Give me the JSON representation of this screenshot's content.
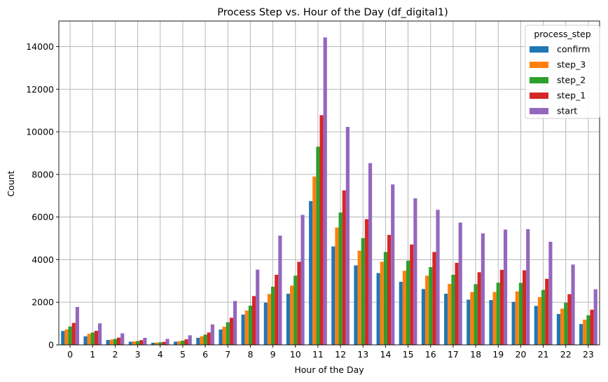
{
  "chart_data": {
    "type": "bar",
    "title": "Process Step vs. Hour of the Day (df_digital1)",
    "xlabel": "Hour of the Day",
    "ylabel": "Count",
    "ylim": [
      0,
      15200
    ],
    "yticks": [
      0,
      2000,
      4000,
      6000,
      8000,
      10000,
      12000,
      14000
    ],
    "grid": true,
    "legend": {
      "title": "process_step",
      "placement": "top-right"
    },
    "categories": [
      "0",
      "1",
      "2",
      "3",
      "4",
      "5",
      "6",
      "7",
      "8",
      "9",
      "10",
      "11",
      "12",
      "13",
      "14",
      "15",
      "16",
      "17",
      "18",
      "19",
      "20",
      "21",
      "22",
      "23"
    ],
    "series": [
      {
        "name": "confirm",
        "color": "#1f77b4",
        "values": [
          650,
          400,
          230,
          150,
          100,
          150,
          330,
          720,
          1420,
          1980,
          2400,
          6750,
          4620,
          3730,
          3370,
          2960,
          2620,
          2400,
          2120,
          2100,
          2020,
          1830,
          1450,
          980
        ]
      },
      {
        "name": "step_3",
        "color": "#ff7f0e",
        "values": [
          720,
          520,
          250,
          160,
          110,
          170,
          400,
          850,
          1610,
          2390,
          2780,
          7900,
          5510,
          4420,
          3900,
          3480,
          3250,
          2860,
          2480,
          2480,
          2510,
          2240,
          1700,
          1180
        ]
      },
      {
        "name": "step_2",
        "color": "#2ca02c",
        "values": [
          860,
          580,
          280,
          180,
          120,
          200,
          480,
          1060,
          1840,
          2730,
          3250,
          9300,
          6210,
          5010,
          4360,
          3950,
          3650,
          3290,
          2850,
          2920,
          2910,
          2580,
          1980,
          1390
        ]
      },
      {
        "name": "step_1",
        "color": "#d62728",
        "values": [
          1030,
          660,
          340,
          220,
          140,
          260,
          580,
          1270,
          2290,
          3290,
          3900,
          10780,
          7250,
          5900,
          5160,
          4710,
          4360,
          3850,
          3410,
          3520,
          3500,
          3100,
          2380,
          1650
        ]
      },
      {
        "name": "start",
        "color": "#9467bd",
        "values": [
          1780,
          1010,
          540,
          330,
          280,
          450,
          960,
          2060,
          3530,
          5130,
          6100,
          14430,
          10230,
          8530,
          7530,
          6880,
          6340,
          5740,
          5230,
          5410,
          5430,
          4840,
          3770,
          2610
        ]
      }
    ]
  }
}
